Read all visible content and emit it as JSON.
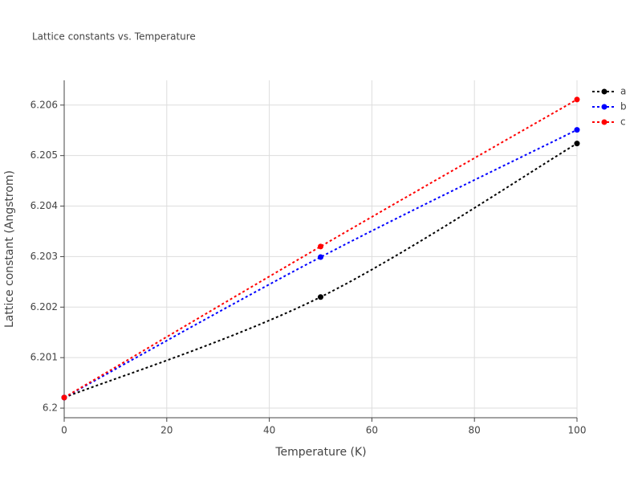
{
  "chart_data": {
    "type": "line",
    "title": "Lattice constants vs. Temperature",
    "x_label": "Temperature (K)",
    "y_label": "Lattice constant (Angstrom)",
    "x": [
      0,
      50,
      100
    ],
    "series": [
      {
        "name": "a",
        "color": "#000000",
        "values": [
          6.20021,
          6.2022,
          6.20524
        ]
      },
      {
        "name": "b",
        "color": "#0000ff",
        "values": [
          6.20021,
          6.20299,
          6.20551
        ]
      },
      {
        "name": "c",
        "color": "#ff0000",
        "values": [
          6.20021,
          6.2032,
          6.20611
        ]
      }
    ],
    "xlim": [
      0,
      100
    ],
    "xticks": [
      0,
      20,
      40,
      60,
      80,
      100
    ],
    "ylim": [
      6.19981,
      6.20649
    ],
    "yticks": [
      6.2,
      6.201,
      6.202,
      6.203,
      6.204,
      6.205,
      6.206
    ],
    "grid": true,
    "legend": "top-right",
    "spline": true
  }
}
